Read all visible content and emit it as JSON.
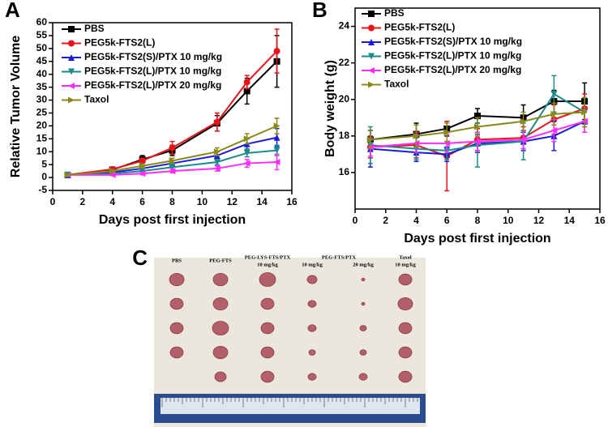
{
  "chart_data": [
    {
      "type": "line",
      "panel": "A",
      "xlabel": "Days post first injection",
      "ylabel": "Relative Tumor Volume",
      "x": [
        1,
        4,
        6,
        8,
        11,
        13,
        15
      ],
      "xlim": [
        0,
        16
      ],
      "xticks": [
        0,
        2,
        4,
        6,
        8,
        10,
        12,
        14,
        16
      ],
      "ylim": [
        -5,
        60
      ],
      "yticks": [
        -5,
        0,
        5,
        10,
        15,
        20,
        25,
        30,
        35,
        40,
        45,
        50,
        55,
        60
      ],
      "legend": "upper-left",
      "series": [
        {
          "name": "PBS",
          "color": "#000000",
          "marker": "square",
          "values": [
            1,
            3,
            7,
            10.5,
            21,
            33.5,
            45
          ],
          "errors": [
            0.5,
            0.6,
            1.5,
            2,
            3,
            5,
            10
          ]
        },
        {
          "name": "PEG5k-FTS2(L)",
          "color": "#e8141a",
          "marker": "circle",
          "values": [
            1,
            3.2,
            6.5,
            11.5,
            21.5,
            37,
            49
          ],
          "errors": [
            0.5,
            0.6,
            1,
            2.5,
            3.5,
            2.5,
            8.5
          ]
        },
        {
          "name": "PEG5k-FTS2(S)/PTX 10 mg/kg",
          "color": "#1a1adc",
          "marker": "triangle-up",
          "values": [
            1,
            2,
            3.5,
            5.5,
            8.5,
            13,
            15.5
          ],
          "errors": [
            0.3,
            0.5,
            0.8,
            1,
            1.5,
            2,
            3.5
          ]
        },
        {
          "name": "PEG5k-FTS2(L)/PTX 10 mg/kg",
          "color": "#1a8a8a",
          "marker": "triangle-down",
          "values": [
            1,
            1.5,
            2.5,
            4,
            6,
            9.5,
            10.5
          ],
          "errors": [
            0.3,
            0.4,
            0.6,
            0.8,
            1,
            1.5,
            2
          ]
        },
        {
          "name": "PEG5k-FTS2(L)/PTX 20 mg/kg",
          "color": "#ff2cff",
          "marker": "triangle-left",
          "values": [
            1,
            1,
            1.5,
            2.5,
            3.5,
            5.5,
            6
          ],
          "errors": [
            0.3,
            0.3,
            0.5,
            0.7,
            1,
            1.5,
            3
          ]
        },
        {
          "name": "Taxol",
          "color": "#8a8a1a",
          "marker": "triangle-right",
          "values": [
            1,
            2.5,
            4.5,
            6.5,
            10,
            15,
            20
          ],
          "errors": [
            0.3,
            0.5,
            0.8,
            1,
            1.5,
            2,
            3
          ]
        }
      ]
    },
    {
      "type": "line",
      "panel": "B",
      "xlabel": "Days post first injection",
      "ylabel": "Body weight (g)",
      "x": [
        1,
        4,
        6,
        8,
        11,
        13,
        15
      ],
      "xlim": [
        0,
        16
      ],
      "xticks": [
        0,
        2,
        4,
        6,
        8,
        10,
        12,
        14,
        16
      ],
      "ylim": [
        14,
        25
      ],
      "yticks": [
        16,
        18,
        20,
        22,
        24
      ],
      "legend": "upper-left",
      "series": [
        {
          "name": "PBS",
          "color": "#000000",
          "marker": "square",
          "values": [
            17.8,
            18.1,
            18.4,
            19.1,
            19.0,
            19.9,
            19.9
          ],
          "errors": [
            0.5,
            0.6,
            0.4,
            0.4,
            0.7,
            0.6,
            1
          ]
        },
        {
          "name": "PEG5k-FTS2(L)",
          "color": "#e8141a",
          "marker": "circle",
          "values": [
            17.4,
            17.5,
            16.9,
            17.8,
            17.9,
            18.9,
            19.5
          ],
          "errors": [
            0.6,
            0.7,
            1.9,
            0.6,
            0.6,
            0.8,
            0.8
          ]
        },
        {
          "name": "PEG5k-FTS2(S)/PTX 10 mg/kg",
          "color": "#1a1adc",
          "marker": "triangle-up",
          "values": [
            17.3,
            17.1,
            17.0,
            17.6,
            17.7,
            18.0,
            18.8
          ],
          "errors": [
            1,
            0.5,
            0.4,
            0.5,
            0.5,
            0.8,
            0.6
          ]
        },
        {
          "name": "PEG5k-FTS2(L)/PTX 10 mg/kg",
          "color": "#1a8a8a",
          "marker": "triangle-down",
          "values": [
            17.5,
            17.3,
            17.2,
            17.5,
            17.7,
            20.3,
            19.3
          ],
          "errors": [
            1,
            0.6,
            0.5,
            1.2,
            1,
            1,
            0.8
          ]
        },
        {
          "name": "PEG5k-FTS2(L)/PTX 20 mg/kg",
          "color": "#ff2cff",
          "marker": "triangle-left",
          "values": [
            17.4,
            17.6,
            17.6,
            17.7,
            17.8,
            18.3,
            18.8
          ],
          "errors": [
            0.5,
            0.5,
            0.5,
            0.5,
            0.5,
            0.6,
            0.6
          ]
        },
        {
          "name": "Taxol",
          "color": "#8a8a1a",
          "marker": "triangle-right",
          "values": [
            17.8,
            18.0,
            18.2,
            18.5,
            18.8,
            19.2,
            19.3
          ],
          "errors": [
            0.5,
            0.6,
            0.5,
            0.5,
            0.5,
            0.6,
            0.8
          ]
        }
      ]
    }
  ],
  "photo": {
    "panel": "C",
    "labels": [
      "PBS",
      "PEG-FTS",
      "PEG-LYS-FTS/PTX",
      "10 mg/kg",
      "PEG-FTS/PTX",
      "10 mg/kg",
      "20 mg/kg",
      "Taxol",
      "10 mg/kg"
    ]
  }
}
